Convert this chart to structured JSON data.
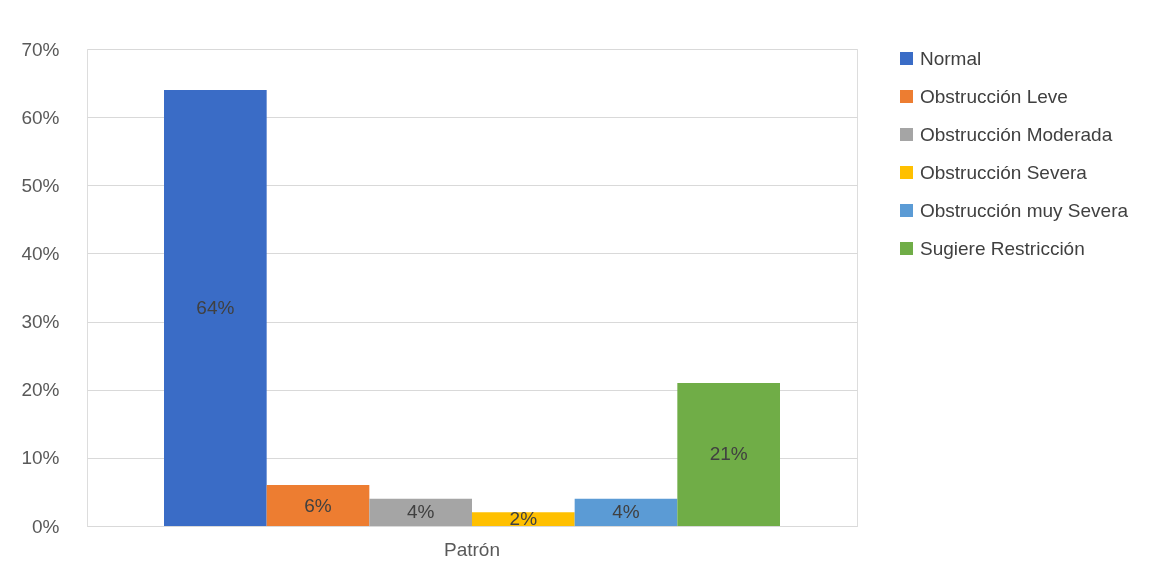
{
  "chart_data": {
    "type": "bar",
    "categories": [
      "Patrón"
    ],
    "series": [
      {
        "name": "Normal",
        "color": "#3a6cc6",
        "values": [
          64
        ],
        "value_labels": [
          "64%"
        ]
      },
      {
        "name": "Obstrucción Leve",
        "color": "#ed7d31",
        "values": [
          6
        ],
        "value_labels": [
          "6%"
        ]
      },
      {
        "name": "Obstrucción Moderada",
        "color": "#a5a5a5",
        "values": [
          4
        ],
        "value_labels": [
          "4%"
        ]
      },
      {
        "name": "Obstrucción Severa",
        "color": "#ffc000",
        "values": [
          2
        ],
        "value_labels": [
          "2%"
        ]
      },
      {
        "name": "Obstrucción muy Severa",
        "color": "#5b9bd5",
        "values": [
          4
        ],
        "value_labels": [
          "4%"
        ]
      },
      {
        "name": "Sugiere Restricción",
        "color": "#70ad47",
        "values": [
          21
        ],
        "value_labels": [
          "21%"
        ]
      }
    ],
    "ylim": [
      0,
      70
    ],
    "yticks": [
      {
        "value": 0,
        "label": "0%"
      },
      {
        "value": 10,
        "label": "10%"
      },
      {
        "value": 20,
        "label": "20%"
      },
      {
        "value": 30,
        "label": "30%"
      },
      {
        "value": 40,
        "label": "40%"
      },
      {
        "value": 50,
        "label": "50%"
      },
      {
        "value": 60,
        "label": "60%"
      },
      {
        "value": 70,
        "label": "70%"
      }
    ],
    "grid": "y",
    "legend": "right"
  }
}
